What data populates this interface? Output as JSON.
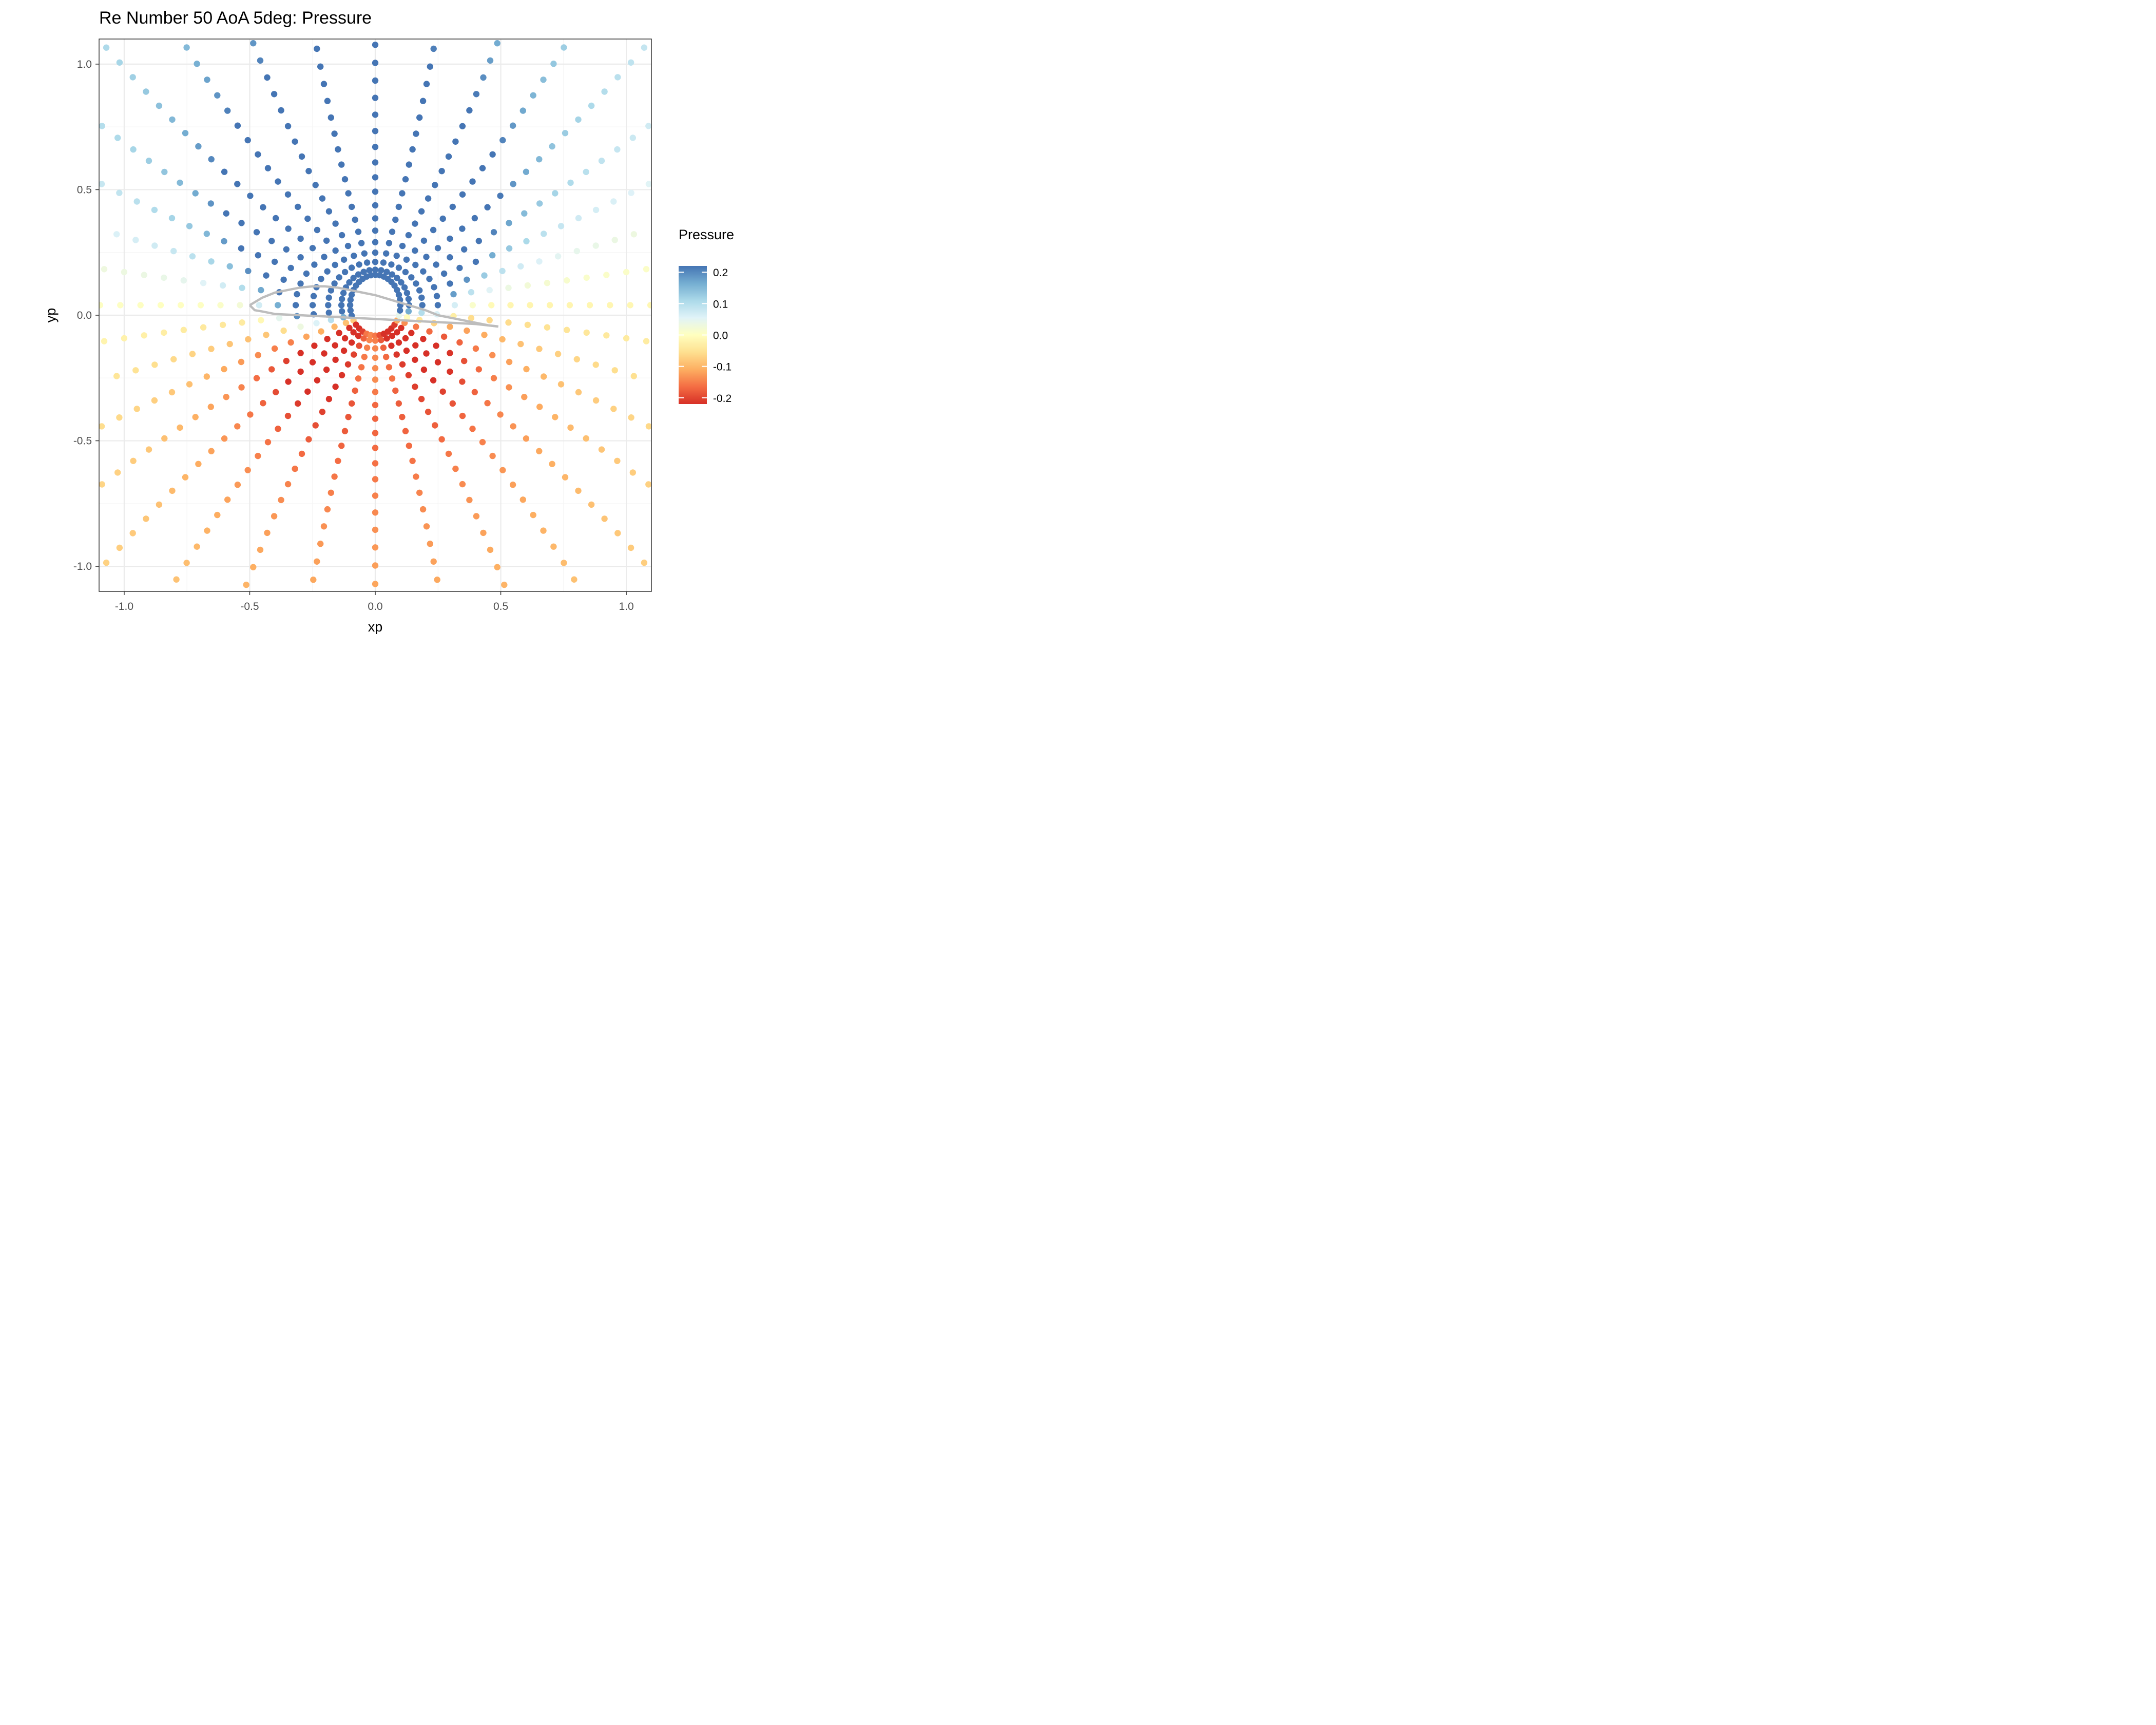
{
  "chart_data": {
    "type": "scatter",
    "title": "Re Number 50 AoA 5deg: Pressure",
    "xlabel": "xp",
    "ylabel": "yp",
    "xlim": [
      -1.1,
      1.1
    ],
    "ylim": [
      -1.1,
      1.1
    ],
    "x_ticks": [
      -1.0,
      -0.5,
      0.0,
      0.5,
      1.0
    ],
    "x_tick_labels": [
      "-1.0",
      "-0.5",
      "0.0",
      "0.5",
      "1.0"
    ],
    "y_ticks": [
      -1.0,
      -0.5,
      0.0,
      0.5,
      1.0
    ],
    "y_tick_labels": [
      "-1.0",
      "-0.5",
      "0.0",
      "0.5",
      "1.0"
    ],
    "grid": true,
    "legend": {
      "title": "Pressure",
      "placement": "right",
      "ticks": [
        0.2,
        0.1,
        0.0,
        -0.1,
        -0.2
      ],
      "tick_labels": [
        "0.2",
        "0.1",
        "0.0",
        "-0.1",
        "-0.2"
      ],
      "range": [
        -0.22,
        0.22
      ],
      "colors": [
        "#d73027",
        "#f46d43",
        "#fdae61",
        "#fee090",
        "#ffffbf",
        "#e0f3f8",
        "#abd9e9",
        "#74add1",
        "#4575b4"
      ]
    },
    "colors": {
      "airfoil": "#bdbdbd",
      "panel_border": "#333333",
      "grid_major": "#ebebeb",
      "grid_minor": "#f5f5f5"
    },
    "flow": {
      "freestream_angle_deg": 5,
      "leading_edge": [
        -0.5,
        0.04
      ],
      "trailing_edge": [
        0.49,
        -0.045
      ]
    },
    "airfoil_upper": [
      [
        -0.5,
        0.04
      ],
      [
        -0.45,
        0.07
      ],
      [
        -0.4,
        0.09
      ],
      [
        -0.35,
        0.1
      ],
      [
        -0.3,
        0.11
      ],
      [
        -0.25,
        0.115
      ],
      [
        -0.2,
        0.115
      ],
      [
        -0.15,
        0.11
      ],
      [
        -0.1,
        0.1
      ],
      [
        -0.05,
        0.09
      ],
      [
        0.0,
        0.08
      ],
      [
        0.05,
        0.065
      ],
      [
        0.1,
        0.05
      ],
      [
        0.15,
        0.035
      ],
      [
        0.2,
        0.02
      ],
      [
        0.25,
        0.0
      ],
      [
        0.3,
        -0.01
      ],
      [
        0.35,
        -0.02
      ],
      [
        0.4,
        -0.03
      ],
      [
        0.45,
        -0.04
      ],
      [
        0.49,
        -0.045
      ]
    ],
    "airfoil_lower": [
      [
        -0.5,
        0.04
      ],
      [
        -0.48,
        0.02
      ],
      [
        -0.45,
        0.015
      ],
      [
        -0.4,
        0.005
      ],
      [
        -0.3,
        0.0
      ],
      [
        -0.2,
        -0.005
      ],
      [
        -0.1,
        -0.01
      ],
      [
        0.0,
        -0.015
      ],
      [
        0.1,
        -0.02
      ],
      [
        0.2,
        -0.025
      ],
      [
        0.3,
        -0.03
      ],
      [
        0.4,
        -0.035
      ],
      [
        0.49,
        -0.045
      ]
    ],
    "grid_generation": {
      "radial_lines": 36,
      "points_per_line": 24
    }
  }
}
